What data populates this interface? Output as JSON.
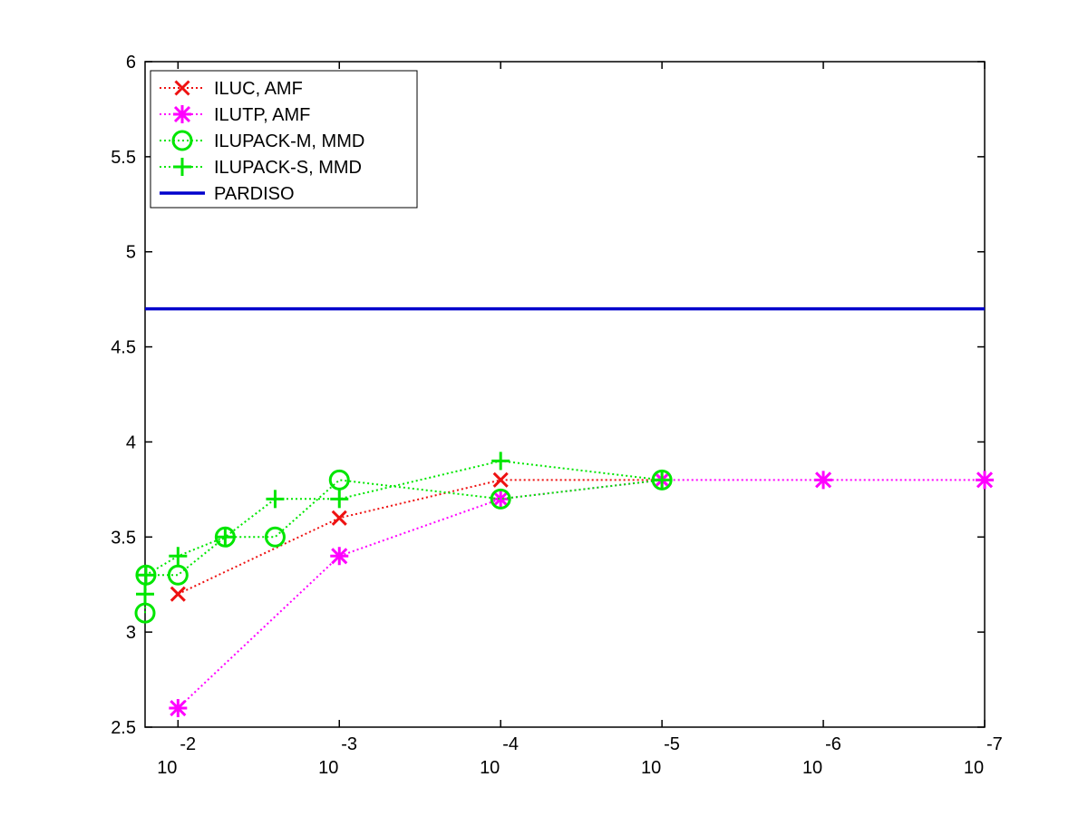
{
  "chart_data": {
    "type": "line",
    "title": "",
    "xlabel": "",
    "ylabel": "",
    "xscale": "log-reversed",
    "xlim": [
      0.016,
      1e-07
    ],
    "ylim": [
      2.5,
      6
    ],
    "grid": false,
    "legend_position": "top-left",
    "colors": {
      "red": "#ee1111",
      "magenta": "#ff00ff",
      "green": "#00e600",
      "blue": "#0000cc"
    },
    "x_ticks": [
      {
        "base": "10",
        "exp": "-2",
        "value": 0.01
      },
      {
        "base": "10",
        "exp": "-3",
        "value": 0.001
      },
      {
        "base": "10",
        "exp": "-4",
        "value": 0.0001
      },
      {
        "base": "10",
        "exp": "-5",
        "value": 1e-05
      },
      {
        "base": "10",
        "exp": "-6",
        "value": 1e-06
      },
      {
        "base": "10",
        "exp": "-7",
        "value": 1e-07
      }
    ],
    "y_ticks": [
      "2.5",
      "3",
      "3.5",
      "4",
      "4.5",
      "5",
      "5.5",
      "6"
    ],
    "series": [
      {
        "name": "ILUC, AMF",
        "color": "#ee1111",
        "marker": "x",
        "line": "dotted",
        "points": [
          {
            "x": 0.01,
            "y": 3.2
          },
          {
            "x": 0.001,
            "y": 3.6
          },
          {
            "x": 0.0001,
            "y": 3.8
          },
          {
            "x": 1e-05,
            "y": 3.8
          }
        ]
      },
      {
        "name": "ILUTP, AMF",
        "color": "#ff00ff",
        "marker": "asterisk",
        "line": "dotted",
        "points": [
          {
            "x": 0.01,
            "y": 2.6
          },
          {
            "x": 0.001,
            "y": 3.4
          },
          {
            "x": 0.0001,
            "y": 3.7
          },
          {
            "x": 1e-05,
            "y": 3.8
          },
          {
            "x": 1e-06,
            "y": 3.8
          },
          {
            "x": 1e-07,
            "y": 3.8
          }
        ]
      },
      {
        "name": "ILUPACK-M, MMD",
        "color": "#00e600",
        "marker": "circle",
        "line": "dotted",
        "points": [
          {
            "x": 0.016,
            "y": 3.1
          },
          {
            "x": 0.0158,
            "y": 3.3
          },
          {
            "x": 0.01,
            "y": 3.3
          },
          {
            "x": 0.0051,
            "y": 3.5
          },
          {
            "x": 0.0025,
            "y": 3.5
          },
          {
            "x": 0.001,
            "y": 3.8
          },
          {
            "x": 0.0001,
            "y": 3.7
          },
          {
            "x": 1e-05,
            "y": 3.8
          }
        ]
      },
      {
        "name": "ILUPACK-S, MMD",
        "color": "#00e600",
        "marker": "plus",
        "line": "dotted",
        "points": [
          {
            "x": 0.016,
            "y": 3.2
          },
          {
            "x": 0.0158,
            "y": 3.3
          },
          {
            "x": 0.01,
            "y": 3.4
          },
          {
            "x": 0.0051,
            "y": 3.5
          },
          {
            "x": 0.0025,
            "y": 3.7
          },
          {
            "x": 0.001,
            "y": 3.7
          },
          {
            "x": 0.0001,
            "y": 3.9
          },
          {
            "x": 1e-05,
            "y": 3.8
          }
        ]
      },
      {
        "name": "PARDISO",
        "color": "#0000cc",
        "marker": "none",
        "line": "solid",
        "points": [
          {
            "x": 0.016,
            "y": 4.7
          },
          {
            "x": 1e-07,
            "y": 4.7
          }
        ]
      }
    ]
  }
}
